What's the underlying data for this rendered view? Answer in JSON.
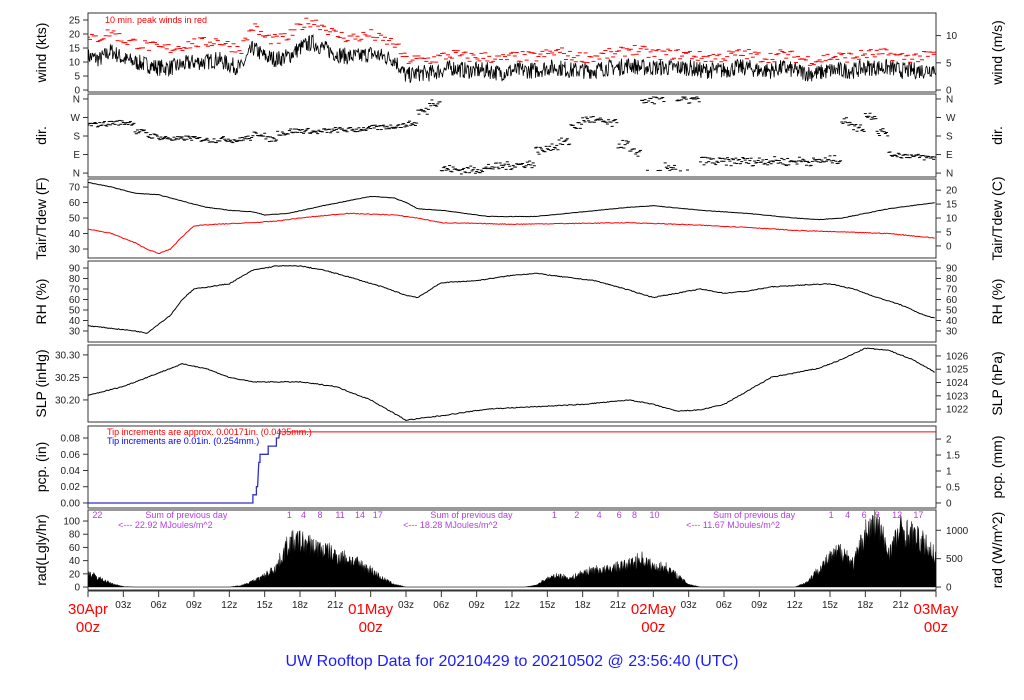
{
  "title": "UW Rooftop Data for 20210429  to  20210502 @ 23:56:40  (UTC)",
  "chart_data": {
    "type": "line",
    "x_unit": "hours since 30Apr 00z",
    "x_ticks": [
      "03z",
      "06z",
      "09z",
      "12z",
      "15z",
      "18z",
      "21z",
      "",
      "03z",
      "06z",
      "09z",
      "12z",
      "15z",
      "18z",
      "21z",
      "",
      "03z",
      "06z",
      "09z",
      "12z",
      "15z",
      "18z",
      "21z"
    ],
    "day_labels": [
      {
        "hour": 0,
        "date": "30Apr",
        "time": "00z"
      },
      {
        "hour": 24,
        "date": "01May",
        "time": "00z"
      },
      {
        "hour": 48,
        "date": "02May",
        "time": "00z"
      },
      {
        "hour": 72,
        "date": "03May",
        "time": "00z"
      }
    ],
    "panels": [
      {
        "id": "wind",
        "ylabel": "wind (kts)",
        "ylabel_right": "wind (m/s)",
        "ylim": [
          -0.7,
          27.5
        ],
        "yticks": [
          0,
          5,
          10,
          15,
          20,
          25
        ],
        "yticks_right": [
          0,
          5,
          10
        ],
        "annotation": "10 min. peak winds in red",
        "colors": {
          "mean": "#000000",
          "peak": "#ff0000"
        },
        "series": {
          "mean": [
            12,
            11,
            14,
            11,
            10,
            9,
            8,
            8,
            9,
            10,
            10,
            11,
            9,
            8,
            15,
            12,
            11,
            12,
            15,
            17,
            15,
            13,
            12,
            12,
            13,
            12,
            11,
            5,
            6,
            6,
            7,
            8,
            7,
            7,
            7,
            6,
            7,
            7,
            7,
            8,
            8,
            7,
            7,
            7,
            8,
            8,
            9,
            8,
            8,
            8,
            8,
            8,
            7,
            7,
            7,
            8,
            8,
            7,
            7,
            8,
            7,
            6,
            6,
            7,
            7,
            7,
            8,
            8,
            8,
            7,
            7,
            7,
            8
          ],
          "peak": [
            17,
            18,
            20,
            17,
            16,
            15,
            14,
            14,
            15,
            16,
            16,
            17,
            15,
            14,
            22,
            18,
            17,
            18,
            22,
            24,
            22,
            19,
            18,
            18,
            19,
            17,
            16,
            10,
            10,
            10,
            11,
            12,
            11,
            11,
            11,
            10,
            11,
            11,
            11,
            12,
            13,
            11,
            11,
            11,
            12,
            12,
            14,
            13,
            12,
            12,
            12,
            12,
            11,
            11,
            11,
            12,
            12,
            11,
            11,
            12,
            11,
            10,
            10,
            11,
            11,
            11,
            12,
            12,
            12,
            11,
            11,
            11,
            12
          ]
        }
      },
      {
        "id": "dir",
        "ylabel": "dir.",
        "ylabel_right": "dir.",
        "ylim": [
          -19,
          384
        ],
        "yticks": [
          0,
          90,
          180,
          270,
          360
        ],
        "ytick_labels": [
          "N",
          "E",
          "S",
          "W",
          "N"
        ],
        "series": {
          "direction_deg": [
            235,
            240,
            245,
            245,
            200,
            180,
            170,
            165,
            170,
            165,
            160,
            165,
            160,
            170,
            190,
            165,
            195,
            205,
            205,
            200,
            205,
            210,
            210,
            215,
            220,
            225,
            230,
            240,
            300,
            345,
            20,
            15,
            15,
            20,
            30,
            35,
            40,
            45,
            110,
            130,
            150,
            230,
            260,
            250,
            240,
            140,
            100,
            355,
            355,
            30,
            355,
            355,
            60,
            55,
            55,
            60,
            55,
            60,
            60,
            55,
            60,
            55,
            60,
            65,
            250,
            220,
            280,
            200,
            90,
            85,
            80,
            75,
            80
          ]
        }
      },
      {
        "id": "temp",
        "ylabel": "Tair/Tdew (F)",
        "ylabel_right": "Tair/Tdew (C)",
        "ylim": [
          24.2,
          75.2
        ],
        "yticks": [
          30,
          40,
          50,
          60,
          70
        ],
        "yticks_right": [
          0,
          5,
          10,
          15,
          20
        ],
        "colors": {
          "tair": "#000000",
          "tdew": "#ff0000"
        },
        "series": {
          "tair": [
            [
              0,
              73
            ],
            [
              2,
              70
            ],
            [
              4,
              66
            ],
            [
              6,
              65
            ],
            [
              8,
              61
            ],
            [
              10,
              57
            ],
            [
              12,
              55
            ],
            [
              14,
              54
            ],
            [
              15,
              52
            ],
            [
              17,
              53
            ],
            [
              20,
              58
            ],
            [
              22,
              61
            ],
            [
              24,
              64
            ],
            [
              26,
              63
            ],
            [
              27,
              60
            ],
            [
              28,
              56
            ],
            [
              30,
              55
            ],
            [
              34,
              51
            ],
            [
              38,
              51
            ],
            [
              42,
              54
            ],
            [
              46,
              57
            ],
            [
              48,
              58
            ],
            [
              52,
              55
            ],
            [
              56,
              53
            ],
            [
              60,
              50
            ],
            [
              62,
              49
            ],
            [
              64,
              50
            ],
            [
              68,
              56
            ],
            [
              72,
              60
            ]
          ],
          "tdew": [
            [
              0,
              43
            ],
            [
              2,
              40
            ],
            [
              4,
              34
            ],
            [
              5,
              30
            ],
            [
              6,
              27
            ],
            [
              7,
              30
            ],
            [
              8,
              38
            ],
            [
              9,
              45
            ],
            [
              11,
              46
            ],
            [
              14,
              47
            ],
            [
              16,
              48
            ],
            [
              18,
              50
            ],
            [
              22,
              53
            ],
            [
              26,
              52
            ],
            [
              28,
              50
            ],
            [
              30,
              47
            ],
            [
              36,
              46
            ],
            [
              46,
              47
            ],
            [
              50,
              46
            ],
            [
              56,
              44
            ],
            [
              60,
              42
            ],
            [
              64,
              41
            ],
            [
              68,
              40
            ],
            [
              72,
              37
            ]
          ]
        }
      },
      {
        "id": "rh",
        "ylabel": "RH (%)",
        "ylabel_right": "RH (%)",
        "ylim": [
          19.5,
          96.7
        ],
        "yticks": [
          30,
          40,
          50,
          60,
          70,
          80,
          90
        ],
        "series": {
          "rh": [
            [
              0,
              35
            ],
            [
              4,
              30
            ],
            [
              5,
              28
            ],
            [
              7,
              45
            ],
            [
              8,
              60
            ],
            [
              9,
              70
            ],
            [
              12,
              75
            ],
            [
              14,
              88
            ],
            [
              16,
              92
            ],
            [
              18,
              92
            ],
            [
              20,
              88
            ],
            [
              22,
              82
            ],
            [
              25,
              72
            ],
            [
              27,
              64
            ],
            [
              28,
              62
            ],
            [
              30,
              76
            ],
            [
              33,
              78
            ],
            [
              36,
              83
            ],
            [
              38,
              85
            ],
            [
              40,
              82
            ],
            [
              43,
              78
            ],
            [
              45,
              72
            ],
            [
              48,
              62
            ],
            [
              50,
              66
            ],
            [
              52,
              70
            ],
            [
              54,
              66
            ],
            [
              56,
              68
            ],
            [
              58,
              72
            ],
            [
              61,
              74
            ],
            [
              63,
              75
            ],
            [
              65,
              70
            ],
            [
              67,
              62
            ],
            [
              69,
              55
            ],
            [
              71,
              45
            ],
            [
              72,
              42
            ]
          ]
        }
      },
      {
        "id": "slp",
        "ylabel": "SLP (inHg)",
        "ylabel_right": "SLP (hPa)",
        "ylim": [
          30.151,
          30.322
        ],
        "yticks": [
          30.2,
          30.25,
          30.3
        ],
        "ytick_labels": [
          "30.20",
          "30.25",
          "30.30"
        ],
        "yticks_right": [
          1022,
          1023,
          1024,
          1025,
          1026
        ],
        "series": {
          "slp": [
            [
              0,
              30.21
            ],
            [
              3,
              30.23
            ],
            [
              6,
              30.26
            ],
            [
              8,
              30.28
            ],
            [
              10,
              30.27
            ],
            [
              12,
              30.25
            ],
            [
              14,
              30.24
            ],
            [
              18,
              30.24
            ],
            [
              21,
              30.23
            ],
            [
              24,
              30.2
            ],
            [
              26,
              30.17
            ],
            [
              27,
              30.155
            ],
            [
              30,
              30.165
            ],
            [
              34,
              30.18
            ],
            [
              38,
              30.185
            ],
            [
              42,
              30.19
            ],
            [
              46,
              30.2
            ],
            [
              48,
              30.19
            ],
            [
              50,
              30.175
            ],
            [
              52,
              30.178
            ],
            [
              54,
              30.19
            ],
            [
              56,
              30.22
            ],
            [
              58,
              30.25
            ],
            [
              62,
              30.27
            ],
            [
              64,
              30.29
            ],
            [
              66,
              30.315
            ],
            [
              68,
              30.31
            ],
            [
              70,
              30.29
            ],
            [
              72,
              30.26
            ]
          ]
        }
      },
      {
        "id": "pcp",
        "ylabel": "pcp. (in)",
        "ylabel_right": "pcp. (mm)",
        "ylim": [
          -0.0062,
          0.0948
        ],
        "yticks": [
          0,
          0.02,
          0.04,
          0.06,
          0.08
        ],
        "ytick_labels": [
          "0.00",
          "0.02",
          "0.04",
          "0.06",
          "0.08"
        ],
        "yticks_right": [
          0,
          0.5,
          1,
          1.5,
          2
        ],
        "notes": [
          {
            "text": "Tip increments are approx. 0.00171in. (0.0435mm.)",
            "color": "#ff0000"
          },
          {
            "text": "Tip increments are 0.01in. (0.254mm.)",
            "color": "#0000ff"
          }
        ],
        "series": {
          "pcp_steps": [
            [
              0,
              0
            ],
            [
              14,
              0
            ],
            [
              14,
              0.01
            ],
            [
              14.3,
              0.01
            ],
            [
              14.3,
              0.02
            ],
            [
              14.4,
              0.02
            ],
            [
              14.5,
              0.05
            ],
            [
              14.6,
              0.05
            ],
            [
              14.6,
              0.06
            ],
            [
              15.3,
              0.06
            ],
            [
              15.3,
              0.07
            ],
            [
              16,
              0.07
            ],
            [
              16,
              0.08
            ],
            [
              16.2,
              0.08
            ],
            [
              16.3,
              0.09
            ]
          ],
          "red_total_in": 0.09
        }
      },
      {
        "id": "rad",
        "ylabel": "rad(Lgly/hr)",
        "ylabel_right": "rad (W/m^2)",
        "ylim": [
          -4.5,
          116.7
        ],
        "yticks": [
          0,
          20,
          40,
          60,
          80,
          100
        ],
        "yticks_right": [
          0,
          500,
          1000
        ],
        "series": {
          "rad_wm2": [
            250,
            150,
            60,
            10,
            0,
            0,
            0,
            0,
            0,
            0,
            0,
            0,
            0,
            30,
            100,
            200,
            350,
            750,
            800,
            700,
            650,
            550,
            500,
            400,
            300,
            150,
            50,
            0,
            0,
            0,
            0,
            0,
            0,
            0,
            0,
            0,
            0,
            0,
            30,
            150,
            200,
            150,
            250,
            300,
            300,
            350,
            400,
            500,
            350,
            350,
            200,
            50,
            0,
            0,
            0,
            0,
            0,
            0,
            0,
            0,
            0,
            80,
            300,
            500,
            650,
            400,
            950,
            1100,
            600,
            1000,
            900,
            750,
            550
          ]
        },
        "daily_sums": [
          {
            "hour": 3.6,
            "line1": "Sum of previous day",
            "line2": "<--- 22.92 MJoules/m^2"
          },
          {
            "hour": 27.8,
            "line1": "Sum of previous day",
            "line2": "<--- 18.28 MJoules/m^2"
          },
          {
            "hour": 51.8,
            "line1": "Sum of previous day",
            "line2": "<--- 11.67 MJoules/m^2"
          }
        ],
        "marks": [
          {
            "hour": 0.8,
            "label": "22"
          },
          {
            "hour": 17.1,
            "label": "1"
          },
          {
            "hour": 18.3,
            "label": "4"
          },
          {
            "hour": 19.7,
            "label": "8"
          },
          {
            "hour": 21.4,
            "label": "11"
          },
          {
            "hour": 23.1,
            "label": "14"
          },
          {
            "hour": 24.6,
            "label": "17"
          },
          {
            "hour": 39.6,
            "label": "1"
          },
          {
            "hour": 41.5,
            "label": "2"
          },
          {
            "hour": 43.4,
            "label": "4"
          },
          {
            "hour": 45.1,
            "label": "6"
          },
          {
            "hour": 46.4,
            "label": "8"
          },
          {
            "hour": 48.1,
            "label": "10"
          },
          {
            "hour": 63.1,
            "label": "1"
          },
          {
            "hour": 64.5,
            "label": "4"
          },
          {
            "hour": 65.9,
            "label": "6"
          },
          {
            "hour": 67,
            "label": "9"
          },
          {
            "hour": 68.7,
            "label": "12"
          },
          {
            "hour": 70.5,
            "label": "17"
          }
        ],
        "colors": {
          "marks": "#b040e0"
        }
      }
    ]
  }
}
